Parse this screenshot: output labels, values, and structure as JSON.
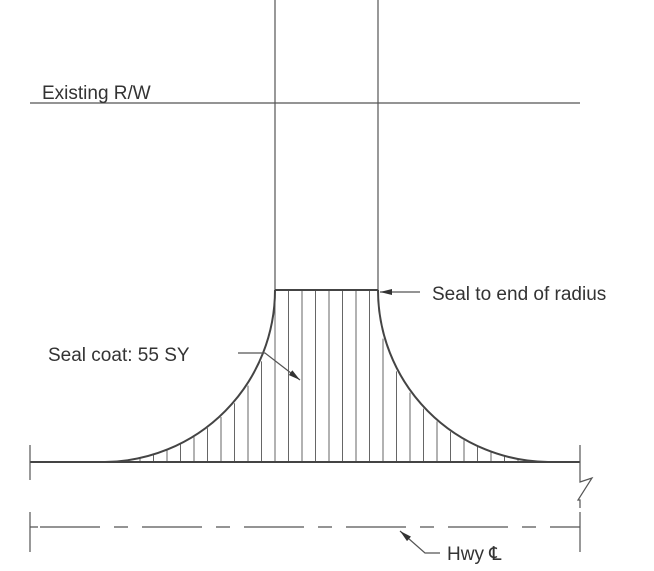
{
  "labels": {
    "existing_rw": "Existing R/W",
    "seal_end": "Seal to end of radius",
    "seal_coat": "Seal coat: 55 SY",
    "hwy_cl": "Hwy ℄"
  }
}
